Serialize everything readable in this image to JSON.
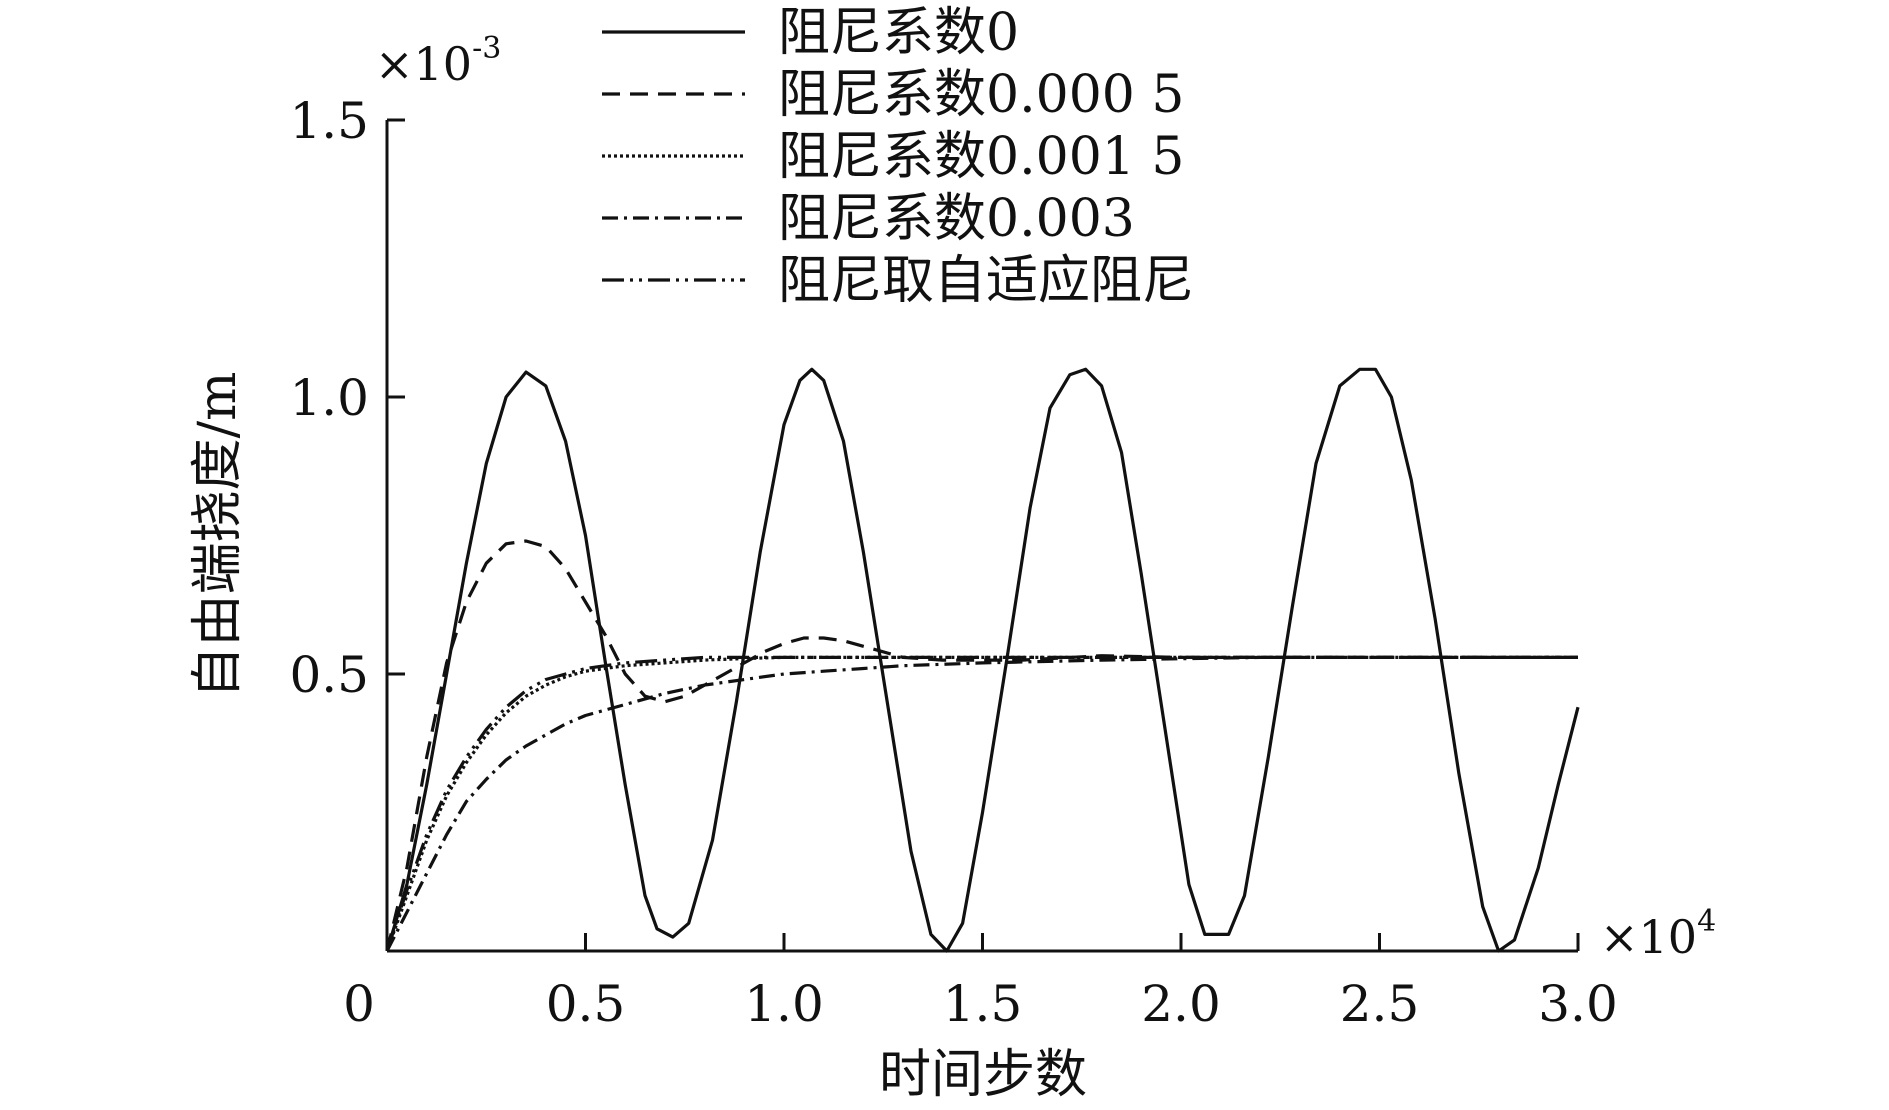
{
  "chart_data": {
    "type": "line",
    "xlabel": "时间步数",
    "ylabel": "自由端挠度/m",
    "x_multiplier": "×10",
    "x_multiplier_exp": "4",
    "y_multiplier": "×10",
    "y_multiplier_exp": "-3",
    "xlim": [
      0,
      3.0
    ],
    "ylim": [
      0,
      1.5
    ],
    "x_ticks": [
      {
        "value": 0,
        "label": "0"
      },
      {
        "value": 0.5,
        "label": "0.5"
      },
      {
        "value": 1.0,
        "label": "1.0"
      },
      {
        "value": 1.5,
        "label": "1.5"
      },
      {
        "value": 2.0,
        "label": "2.0"
      },
      {
        "value": 2.5,
        "label": "2.5"
      },
      {
        "value": 3.0,
        "label": "3.0"
      }
    ],
    "y_ticks": [
      {
        "value": 0.5,
        "label": "0.5"
      },
      {
        "value": 1.0,
        "label": "1.0"
      },
      {
        "value": 1.5,
        "label": "1.5"
      }
    ],
    "grid": false,
    "legend_position": "top",
    "series": [
      {
        "name": "阻尼系数0",
        "dash": "solid",
        "points": [
          [
            0,
            0
          ],
          [
            0.05,
            0.12
          ],
          [
            0.1,
            0.3
          ],
          [
            0.15,
            0.5
          ],
          [
            0.2,
            0.7
          ],
          [
            0.25,
            0.88
          ],
          [
            0.3,
            1.0
          ],
          [
            0.35,
            1.045
          ],
          [
            0.4,
            1.02
          ],
          [
            0.45,
            0.92
          ],
          [
            0.5,
            0.75
          ],
          [
            0.55,
            0.52
          ],
          [
            0.6,
            0.3
          ],
          [
            0.65,
            0.1
          ],
          [
            0.68,
            0.04
          ],
          [
            0.72,
            0.025
          ],
          [
            0.76,
            0.05
          ],
          [
            0.82,
            0.2
          ],
          [
            0.88,
            0.45
          ],
          [
            0.94,
            0.72
          ],
          [
            1.0,
            0.95
          ],
          [
            1.04,
            1.03
          ],
          [
            1.07,
            1.05
          ],
          [
            1.1,
            1.03
          ],
          [
            1.15,
            0.92
          ],
          [
            1.2,
            0.72
          ],
          [
            1.26,
            0.45
          ],
          [
            1.32,
            0.18
          ],
          [
            1.37,
            0.03
          ],
          [
            1.41,
            0.0
          ],
          [
            1.45,
            0.05
          ],
          [
            1.5,
            0.25
          ],
          [
            1.56,
            0.52
          ],
          [
            1.62,
            0.8
          ],
          [
            1.67,
            0.98
          ],
          [
            1.72,
            1.04
          ],
          [
            1.76,
            1.05
          ],
          [
            1.8,
            1.02
          ],
          [
            1.85,
            0.9
          ],
          [
            1.9,
            0.68
          ],
          [
            1.96,
            0.4
          ],
          [
            2.02,
            0.12
          ],
          [
            2.06,
            0.03
          ],
          [
            2.12,
            0.03
          ],
          [
            2.16,
            0.1
          ],
          [
            2.22,
            0.35
          ],
          [
            2.28,
            0.62
          ],
          [
            2.34,
            0.88
          ],
          [
            2.4,
            1.02
          ],
          [
            2.45,
            1.05
          ],
          [
            2.49,
            1.05
          ],
          [
            2.53,
            1.0
          ],
          [
            2.58,
            0.85
          ],
          [
            2.64,
            0.6
          ],
          [
            2.7,
            0.32
          ],
          [
            2.76,
            0.08
          ],
          [
            2.8,
            0.0
          ],
          [
            2.84,
            0.02
          ],
          [
            2.9,
            0.15
          ],
          [
            2.95,
            0.3
          ],
          [
            3.0,
            0.44
          ]
        ]
      },
      {
        "name": "阻尼系数0.000 5",
        "dash": "18 10",
        "points": [
          [
            0,
            0
          ],
          [
            0.05,
            0.15
          ],
          [
            0.1,
            0.35
          ],
          [
            0.15,
            0.52
          ],
          [
            0.2,
            0.63
          ],
          [
            0.25,
            0.7
          ],
          [
            0.3,
            0.735
          ],
          [
            0.35,
            0.74
          ],
          [
            0.4,
            0.73
          ],
          [
            0.45,
            0.69
          ],
          [
            0.5,
            0.63
          ],
          [
            0.55,
            0.57
          ],
          [
            0.6,
            0.5
          ],
          [
            0.65,
            0.46
          ],
          [
            0.7,
            0.45
          ],
          [
            0.75,
            0.46
          ],
          [
            0.8,
            0.48
          ],
          [
            0.85,
            0.5
          ],
          [
            0.9,
            0.52
          ],
          [
            0.95,
            0.54
          ],
          [
            1.0,
            0.555
          ],
          [
            1.05,
            0.565
          ],
          [
            1.1,
            0.565
          ],
          [
            1.15,
            0.56
          ],
          [
            1.2,
            0.55
          ],
          [
            1.3,
            0.53
          ],
          [
            1.4,
            0.525
          ],
          [
            1.6,
            0.525
          ],
          [
            1.8,
            0.533
          ],
          [
            2.0,
            0.53
          ],
          [
            2.3,
            0.53
          ],
          [
            2.6,
            0.53
          ],
          [
            3.0,
            0.53
          ]
        ]
      },
      {
        "name": "阻尼系数0.001 5",
        "dash": "3 3",
        "points": [
          [
            0,
            0
          ],
          [
            0.05,
            0.1
          ],
          [
            0.1,
            0.2
          ],
          [
            0.15,
            0.28
          ],
          [
            0.2,
            0.34
          ],
          [
            0.25,
            0.39
          ],
          [
            0.3,
            0.43
          ],
          [
            0.35,
            0.46
          ],
          [
            0.4,
            0.48
          ],
          [
            0.45,
            0.495
          ],
          [
            0.5,
            0.505
          ],
          [
            0.6,
            0.515
          ],
          [
            0.7,
            0.52
          ],
          [
            0.8,
            0.525
          ],
          [
            0.9,
            0.528
          ],
          [
            1.0,
            0.53
          ],
          [
            1.2,
            0.53
          ],
          [
            1.5,
            0.53
          ],
          [
            2.0,
            0.53
          ],
          [
            2.5,
            0.53
          ],
          [
            3.0,
            0.53
          ]
        ]
      },
      {
        "name": "阻尼系数0.003",
        "dash": "16 6 3 6",
        "points": [
          [
            0,
            0
          ],
          [
            0.05,
            0.07
          ],
          [
            0.1,
            0.14
          ],
          [
            0.15,
            0.21
          ],
          [
            0.2,
            0.27
          ],
          [
            0.25,
            0.31
          ],
          [
            0.3,
            0.345
          ],
          [
            0.35,
            0.37
          ],
          [
            0.4,
            0.39
          ],
          [
            0.45,
            0.41
          ],
          [
            0.5,
            0.425
          ],
          [
            0.6,
            0.445
          ],
          [
            0.7,
            0.465
          ],
          [
            0.8,
            0.48
          ],
          [
            0.9,
            0.49
          ],
          [
            1.0,
            0.5
          ],
          [
            1.1,
            0.505
          ],
          [
            1.2,
            0.51
          ],
          [
            1.3,
            0.515
          ],
          [
            1.5,
            0.52
          ],
          [
            1.8,
            0.525
          ],
          [
            2.2,
            0.53
          ],
          [
            2.6,
            0.53
          ],
          [
            3.0,
            0.53
          ]
        ]
      },
      {
        "name": "阻尼取自适应阻尼",
        "dash": "22 6 3 6 3 6",
        "points": [
          [
            0,
            0
          ],
          [
            0.05,
            0.11
          ],
          [
            0.1,
            0.21
          ],
          [
            0.15,
            0.29
          ],
          [
            0.2,
            0.35
          ],
          [
            0.25,
            0.4
          ],
          [
            0.3,
            0.44
          ],
          [
            0.35,
            0.47
          ],
          [
            0.4,
            0.49
          ],
          [
            0.45,
            0.5
          ],
          [
            0.5,
            0.51
          ],
          [
            0.55,
            0.515
          ],
          [
            0.6,
            0.52
          ],
          [
            0.7,
            0.525
          ],
          [
            0.8,
            0.53
          ],
          [
            1.0,
            0.53
          ],
          [
            1.3,
            0.53
          ],
          [
            1.7,
            0.53
          ],
          [
            2.2,
            0.53
          ],
          [
            2.7,
            0.53
          ],
          [
            3.0,
            0.53
          ]
        ]
      }
    ]
  }
}
